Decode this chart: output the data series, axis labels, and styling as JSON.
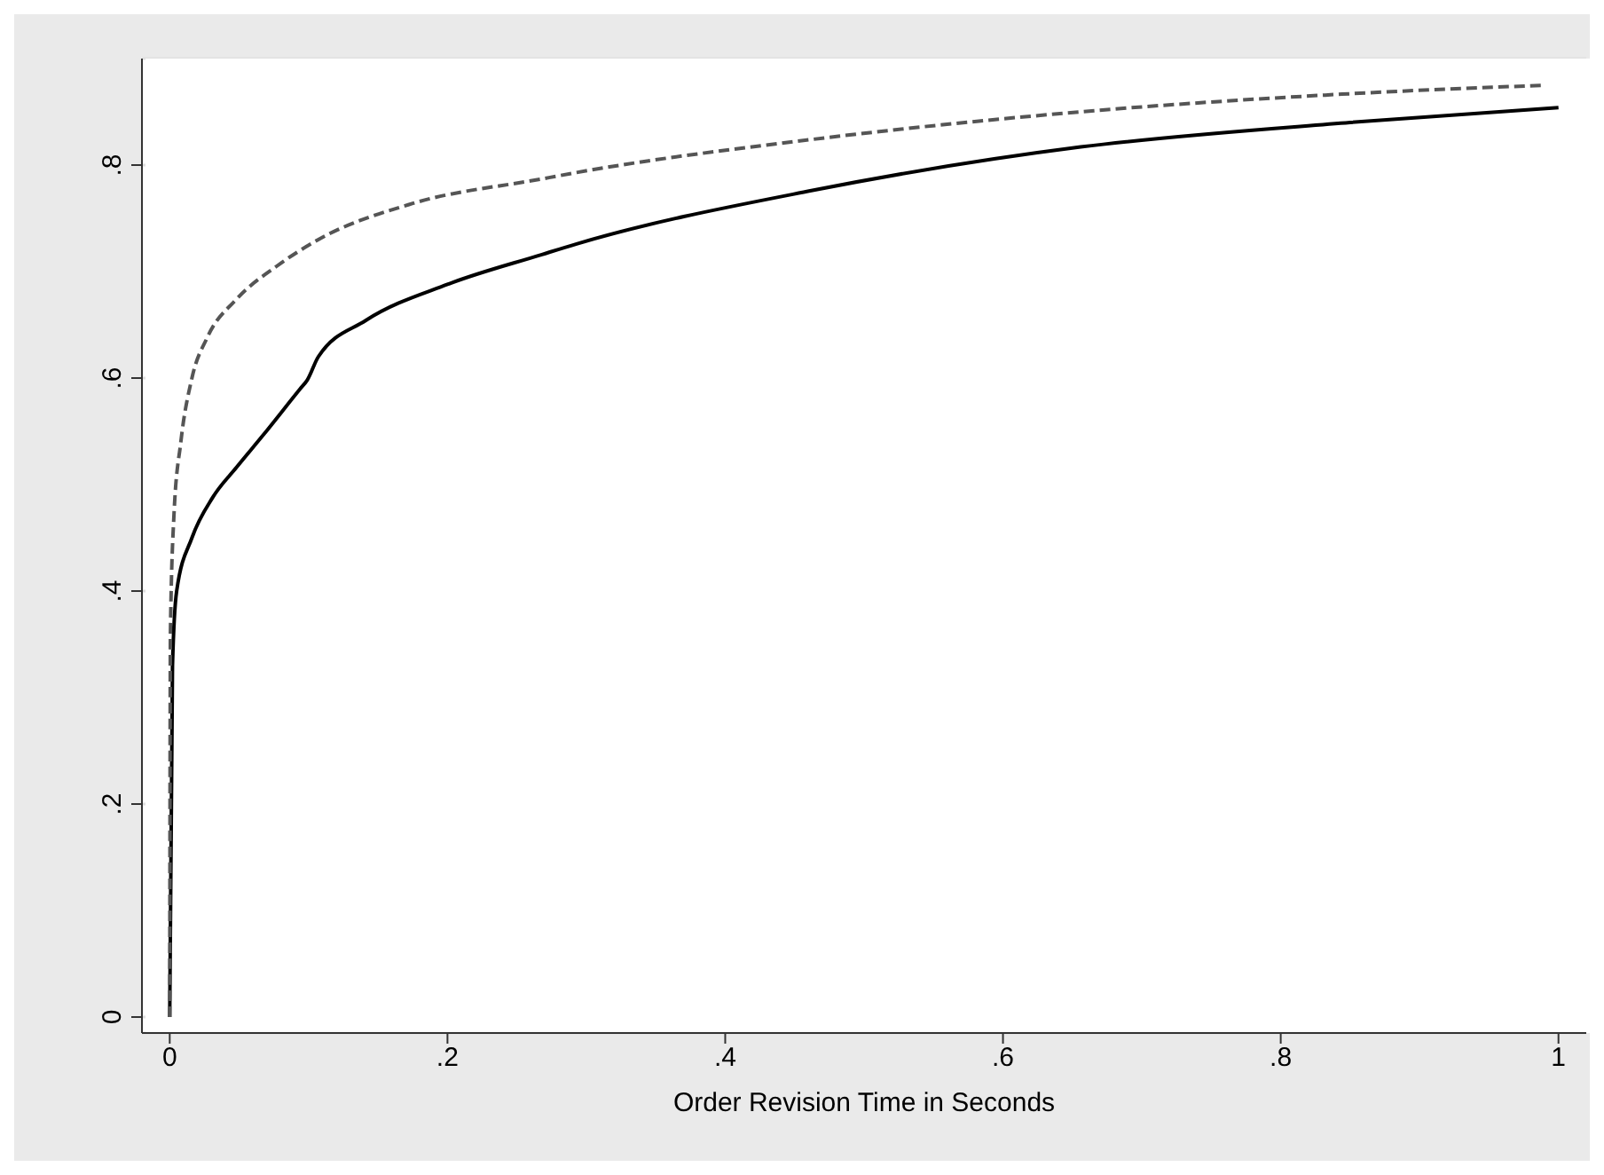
{
  "chart_data": {
    "type": "line",
    "xlabel": "Order Revision Time in Seconds",
    "xlim": [
      -0.02,
      1.02
    ],
    "ylim": [
      -0.015,
      0.9
    ],
    "xticks": [
      0,
      {
        "value": 0.2,
        "label": ".2"
      },
      {
        "value": 0.4,
        "label": ".4"
      },
      {
        "value": 0.6,
        "label": ".6"
      },
      {
        "value": 0.8,
        "label": ".8"
      },
      1
    ],
    "yticks": [
      0,
      {
        "value": 0.2,
        "label": ".2"
      },
      {
        "value": 0.4,
        "label": ".4"
      },
      {
        "value": 0.6,
        "label": ".6"
      },
      {
        "value": 0.8,
        "label": ".8"
      }
    ],
    "grid": "y",
    "legend": false,
    "marker": "none",
    "series": [
      {
        "color": "#000000",
        "line_style": "solid",
        "x": [
          0,
          0.002,
          0.005,
          0.016,
          0.031,
          0.048,
          0.067,
          0.094,
          0.099,
          0.107,
          0.141,
          0.2,
          0.268,
          0.293,
          0.462,
          0.656,
          0.85,
          1.0
        ],
        "values": [
          0,
          0.33,
          0.4,
          0.45,
          0.488,
          0.516,
          0.546,
          0.59,
          0.598,
          0.62,
          0.654,
          0.688,
          0.716,
          0.726,
          0.776,
          0.817,
          0.84,
          0.854
        ]
      },
      {
        "color": "#555555",
        "line_style": "dashed",
        "x": [
          0,
          0.0005,
          0.003,
          0.008,
          0.016,
          0.027,
          0.048,
          0.077,
          0.107,
          0.175,
          0.268,
          0.293,
          0.462,
          0.656,
          0.85,
          0.991
        ],
        "values": [
          0,
          0.36,
          0.47,
          0.54,
          0.6,
          0.638,
          0.674,
          0.705,
          0.73,
          0.764,
          0.787,
          0.793,
          0.824,
          0.85,
          0.867,
          0.875
        ]
      }
    ]
  }
}
